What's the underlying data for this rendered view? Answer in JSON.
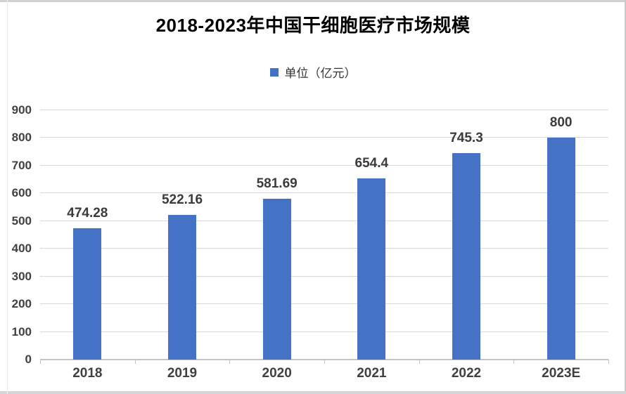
{
  "chart_data": {
    "type": "bar",
    "title": "2018-2023年中国干细胞医疗市场规模",
    "legend_label": "单位（亿元）",
    "legend_position": "top",
    "categories": [
      "2018",
      "2019",
      "2020",
      "2021",
      "2022",
      "2023E"
    ],
    "series": [
      {
        "name": "单位（亿元）",
        "values": [
          474.28,
          522.16,
          581.69,
          654.4,
          745.3,
          800
        ],
        "data_labels": [
          "474.28",
          "522.16",
          "581.69",
          "654.4",
          "745.3",
          "800"
        ]
      }
    ],
    "ylim": [
      0,
      900
    ],
    "ytick_interval": 100,
    "ytick_labels": [
      "0",
      "100",
      "200",
      "300",
      "400",
      "500",
      "600",
      "700",
      "800",
      "900"
    ],
    "grid": true,
    "colors": {
      "bar": "#4472c4",
      "gridline": "#d9d9d9",
      "axis_line": "#c3c3c3",
      "tick_text": "#404040",
      "title_text": "#000000"
    }
  }
}
